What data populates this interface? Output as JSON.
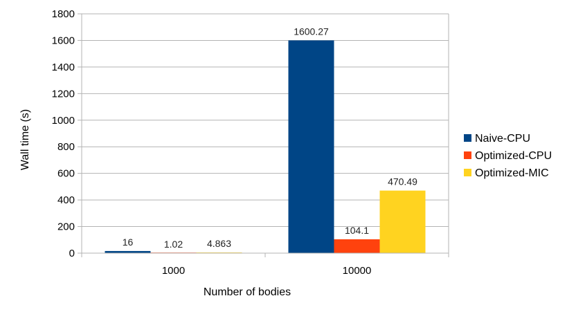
{
  "chart_data": {
    "type": "bar",
    "title": "",
    "xlabel": "Number of bodies",
    "ylabel": "Wall time (s)",
    "categories": [
      "1000",
      "10000"
    ],
    "series": [
      {
        "name": "Naive-CPU",
        "color": "#004586",
        "values": [
          16,
          1600.27
        ],
        "labels": [
          "16",
          "1600.27"
        ]
      },
      {
        "name": "Optimized-CPU",
        "color": "#ff420e",
        "values": [
          1.02,
          104.1
        ],
        "labels": [
          "1.02",
          "104.1"
        ]
      },
      {
        "name": "Optimized-MIC",
        "color": "#ffd320",
        "values": [
          4.863,
          470.49
        ],
        "labels": [
          "4.863",
          "470.49"
        ]
      }
    ],
    "ylim": [
      0,
      1800
    ],
    "yticks": [
      "0",
      "200",
      "400",
      "600",
      "800",
      "1000",
      "1200",
      "1400",
      "1600",
      "1800"
    ],
    "grid": true,
    "legend_position": "right"
  }
}
